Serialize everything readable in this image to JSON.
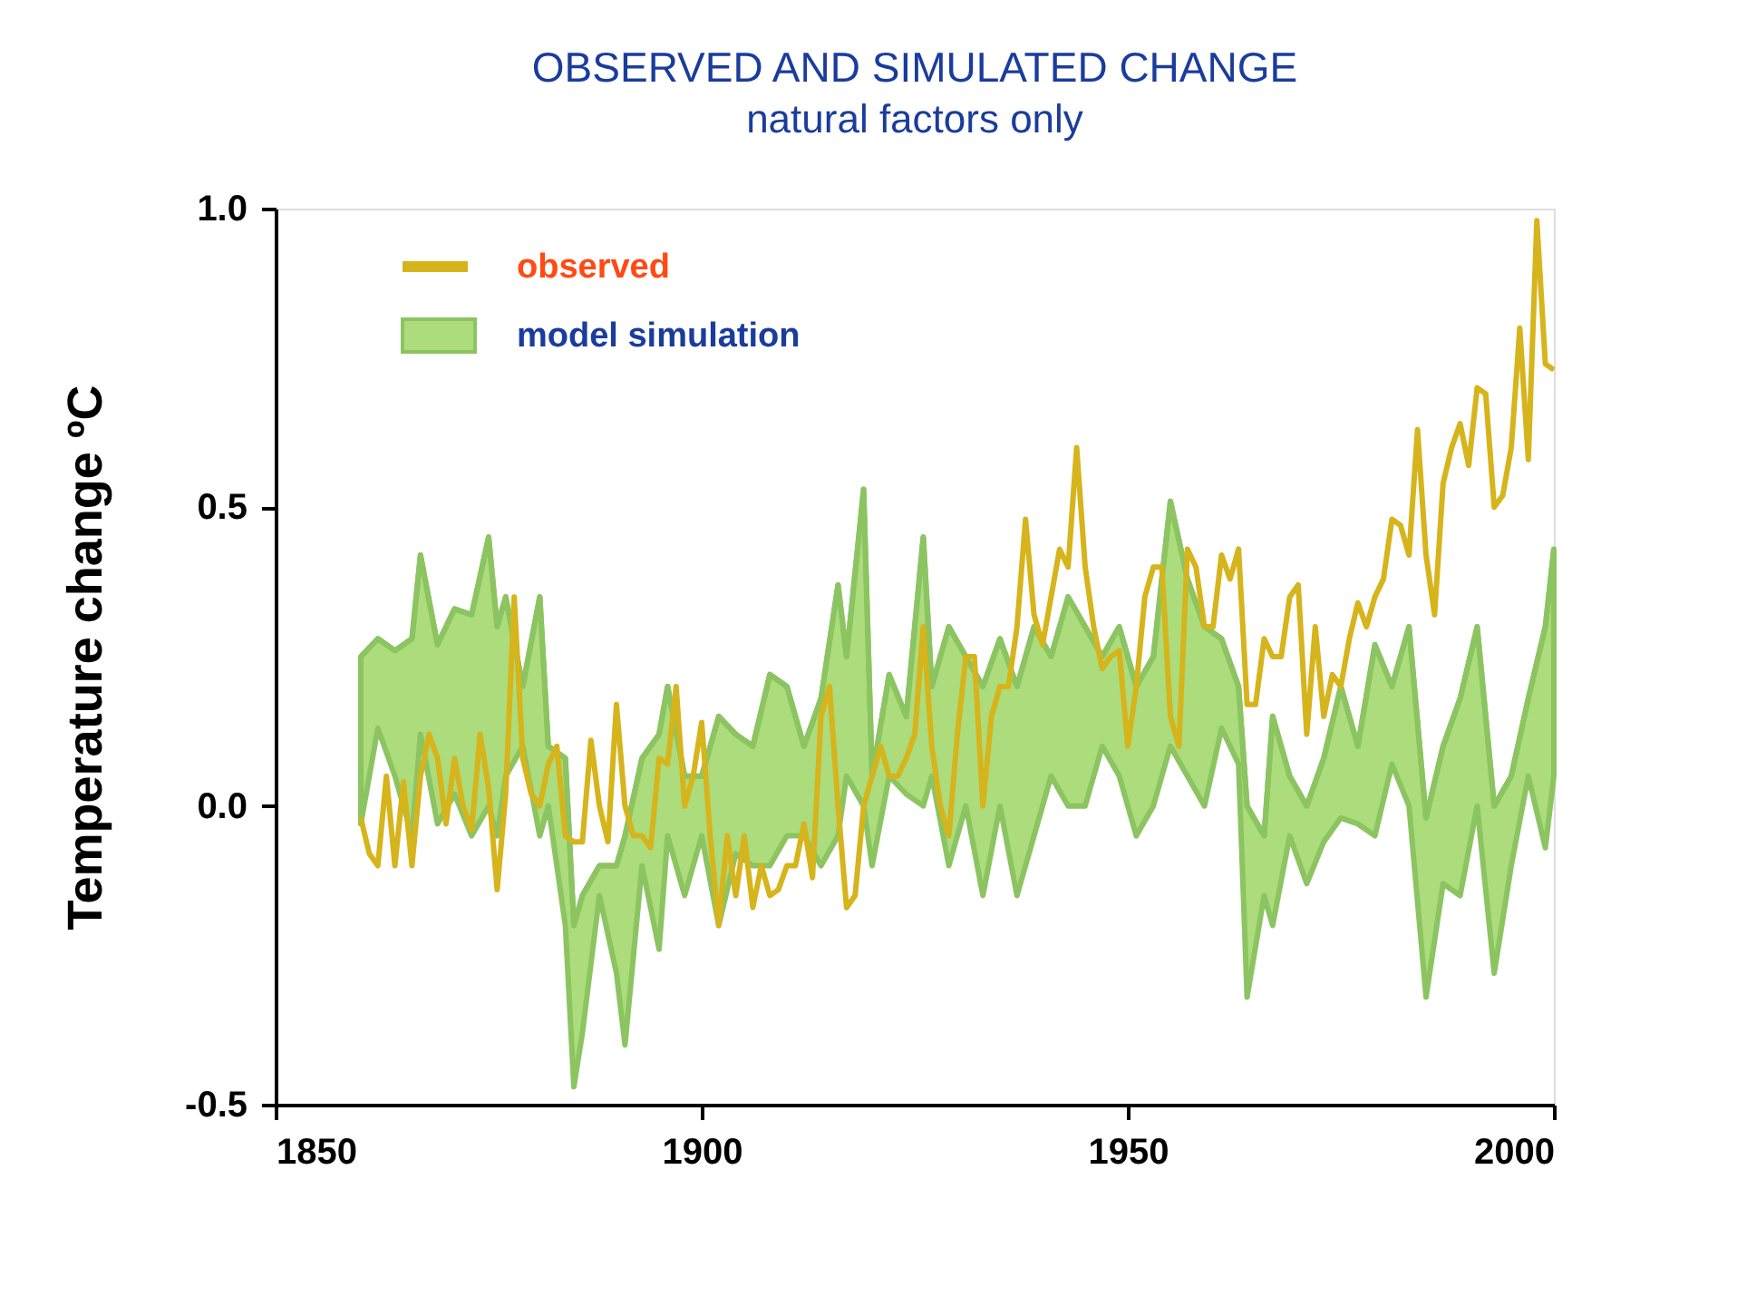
{
  "chart_data": {
    "type": "line",
    "title": "OBSERVED AND SIMULATED CHANGE",
    "subtitle": "natural factors only",
    "ylabel": "Temperature change  ºC",
    "xlim": [
      1850,
      2000
    ],
    "xticks": [
      1850,
      1900,
      1950,
      2000
    ],
    "ylim": [
      -0.5,
      1.0
    ],
    "yticks": [
      {
        "value": -0.5,
        "label": "-0.5"
      },
      {
        "value": 0,
        "label": "0.0"
      },
      {
        "value": 0.5,
        "label": "0.5"
      },
      {
        "value": 1.0,
        "label": "1.0"
      }
    ],
    "grid": false,
    "legend": "top left",
    "series": [
      {
        "name": "model simulation",
        "type": "line",
        "color": "#8cc462",
        "x": [
          1860,
          1862,
          1864,
          1866,
          1867,
          1869,
          1871,
          1873,
          1875,
          1876,
          1877,
          1879,
          1881,
          1882,
          1884,
          1885,
          1886,
          1888,
          1890,
          1891,
          1893,
          1895,
          1896,
          1898,
          1900,
          1902,
          1904,
          1906,
          1908,
          1910,
          1912,
          1914,
          1916,
          1917,
          1919,
          1920,
          1922,
          1924,
          1926,
          1927,
          1929,
          1931,
          1933,
          1935,
          1937,
          1939,
          1941,
          1943,
          1945,
          1947,
          1949,
          1951,
          1953,
          1955,
          1957,
          1959,
          1961,
          1963,
          1964,
          1966,
          1967,
          1969,
          1971,
          1973,
          1975,
          1977,
          1979,
          1981,
          1983,
          1985,
          1987,
          1989,
          1991,
          1993,
          1995,
          1997,
          1999,
          2000
        ],
        "values": [
          0.25,
          0.28,
          0.26,
          0.28,
          0.42,
          0.27,
          0.33,
          0.32,
          0.45,
          0.3,
          0.35,
          0.2,
          0.35,
          0.1,
          0.08,
          -0.2,
          -0.15,
          -0.1,
          -0.1,
          -0.05,
          0.08,
          0.12,
          0.2,
          0.05,
          0.05,
          0.15,
          0.12,
          0.1,
          0.22,
          0.2,
          0.1,
          0.18,
          0.37,
          0.25,
          0.53,
          0.05,
          0.22,
          0.15,
          0.45,
          0.2,
          0.3,
          0.25,
          0.2,
          0.28,
          0.2,
          0.3,
          0.25,
          0.35,
          0.3,
          0.25,
          0.3,
          0.2,
          0.25,
          0.51,
          0.38,
          0.3,
          0.28,
          0.2,
          0.0,
          -0.05,
          0.15,
          0.05,
          0.0,
          0.08,
          0.2,
          0.1,
          0.27,
          0.2,
          0.3,
          -0.02,
          0.1,
          0.18,
          0.3,
          0.0,
          0.05,
          0.18,
          0.3,
          0.43
        ],
        "upper": [
          0.25,
          0.28,
          0.26,
          0.28,
          0.42,
          0.27,
          0.33,
          0.32,
          0.45,
          0.3,
          0.35,
          0.2,
          0.35,
          0.1,
          0.08,
          -0.2,
          -0.15,
          -0.1,
          -0.1,
          -0.05,
          0.08,
          0.12,
          0.2,
          0.05,
          0.05,
          0.15,
          0.12,
          0.1,
          0.22,
          0.2,
          0.1,
          0.18,
          0.37,
          0.25,
          0.53,
          0.05,
          0.22,
          0.15,
          0.45,
          0.2,
          0.3,
          0.25,
          0.2,
          0.28,
          0.2,
          0.3,
          0.25,
          0.35,
          0.3,
          0.25,
          0.3,
          0.2,
          0.25,
          0.51,
          0.38,
          0.3,
          0.28,
          0.2,
          0.0,
          -0.05,
          0.15,
          0.05,
          0.0,
          0.08,
          0.2,
          0.1,
          0.27,
          0.2,
          0.3,
          -0.02,
          0.1,
          0.18,
          0.3,
          0.0,
          0.05,
          0.18,
          0.3,
          0.43
        ],
        "lower": [
          -0.03,
          0.13,
          0.05,
          -0.05,
          0.12,
          -0.03,
          0.02,
          -0.05,
          0.0,
          -0.05,
          0.05,
          0.1,
          -0.05,
          0.0,
          -0.2,
          -0.47,
          -0.38,
          -0.15,
          -0.28,
          -0.4,
          -0.1,
          -0.24,
          -0.05,
          -0.15,
          -0.05,
          -0.2,
          -0.08,
          -0.1,
          -0.1,
          -0.05,
          -0.05,
          -0.1,
          -0.05,
          0.05,
          0.0,
          -0.1,
          0.05,
          0.02,
          0.0,
          0.05,
          -0.1,
          0.0,
          -0.15,
          0.0,
          -0.15,
          -0.05,
          0.05,
          0.0,
          0.0,
          0.1,
          0.05,
          -0.05,
          0.0,
          0.1,
          0.05,
          0.0,
          0.13,
          0.07,
          -0.32,
          -0.15,
          -0.2,
          -0.05,
          -0.13,
          -0.06,
          -0.02,
          -0.03,
          -0.05,
          0.07,
          0.0,
          -0.32,
          -0.13,
          -0.15,
          0.0,
          -0.28,
          -0.1,
          0.05,
          -0.07,
          0.05
        ]
      },
      {
        "name": "observed",
        "type": "line",
        "color": "#d6b41c",
        "x": [
          1860,
          1861,
          1862,
          1863,
          1864,
          1865,
          1866,
          1867,
          1868,
          1869,
          1870,
          1871,
          1872,
          1873,
          1874,
          1875,
          1876,
          1877,
          1878,
          1879,
          1880,
          1881,
          1882,
          1883,
          1884,
          1885,
          1886,
          1887,
          1888,
          1889,
          1890,
          1891,
          1892,
          1893,
          1894,
          1895,
          1896,
          1897,
          1898,
          1899,
          1900,
          1901,
          1902,
          1903,
          1904,
          1905,
          1906,
          1907,
          1908,
          1909,
          1910,
          1911,
          1912,
          1913,
          1914,
          1915,
          1916,
          1917,
          1918,
          1919,
          1920,
          1921,
          1922,
          1923,
          1924,
          1925,
          1926,
          1927,
          1928,
          1929,
          1930,
          1931,
          1932,
          1933,
          1934,
          1935,
          1936,
          1937,
          1938,
          1939,
          1940,
          1941,
          1942,
          1943,
          1944,
          1945,
          1946,
          1947,
          1948,
          1949,
          1950,
          1951,
          1952,
          1953,
          1954,
          1955,
          1956,
          1957,
          1958,
          1959,
          1960,
          1961,
          1962,
          1963,
          1964,
          1965,
          1966,
          1967,
          1968,
          1969,
          1970,
          1971,
          1972,
          1973,
          1974,
          1975,
          1976,
          1977,
          1978,
          1979,
          1980,
          1981,
          1982,
          1983,
          1984,
          1985,
          1986,
          1987,
          1988,
          1989,
          1990,
          1991,
          1992,
          1993,
          1994,
          1995,
          1996,
          1997,
          1998,
          1999,
          2000
        ],
        "values": [
          -0.02,
          -0.08,
          -0.1,
          0.05,
          -0.1,
          0.04,
          -0.1,
          0.05,
          0.12,
          0.08,
          -0.03,
          0.08,
          0.0,
          -0.04,
          0.12,
          0.03,
          -0.14,
          0.02,
          0.35,
          0.08,
          0.02,
          0.0,
          0.07,
          0.1,
          -0.05,
          -0.06,
          -0.06,
          0.11,
          0.0,
          -0.06,
          0.17,
          0.0,
          -0.05,
          -0.05,
          -0.07,
          0.08,
          0.07,
          0.2,
          0.0,
          0.05,
          0.14,
          -0.05,
          -0.2,
          -0.05,
          -0.15,
          -0.05,
          -0.17,
          -0.1,
          -0.15,
          -0.14,
          -0.1,
          -0.1,
          -0.03,
          -0.12,
          0.15,
          0.2,
          0.0,
          -0.17,
          -0.15,
          0.0,
          0.05,
          0.1,
          0.05,
          0.05,
          0.08,
          0.12,
          0.3,
          0.1,
          0.0,
          -0.05,
          0.12,
          0.25,
          0.25,
          0.0,
          0.15,
          0.2,
          0.2,
          0.3,
          0.48,
          0.32,
          0.27,
          0.35,
          0.43,
          0.4,
          0.6,
          0.4,
          0.3,
          0.23,
          0.25,
          0.26,
          0.1,
          0.2,
          0.35,
          0.4,
          0.4,
          0.15,
          0.1,
          0.43,
          0.4,
          0.3,
          0.3,
          0.42,
          0.38,
          0.43,
          0.17,
          0.17,
          0.28,
          0.25,
          0.25,
          0.35,
          0.37,
          0.12,
          0.3,
          0.15,
          0.22,
          0.2,
          0.28,
          0.34,
          0.3,
          0.35,
          0.38,
          0.48,
          0.47,
          0.42,
          0.63,
          0.42,
          0.32,
          0.54,
          0.6,
          0.64,
          0.57,
          0.7,
          0.69,
          0.5,
          0.52,
          0.6,
          0.8,
          0.58,
          0.98,
          0.74,
          0.73
        ]
      }
    ]
  }
}
